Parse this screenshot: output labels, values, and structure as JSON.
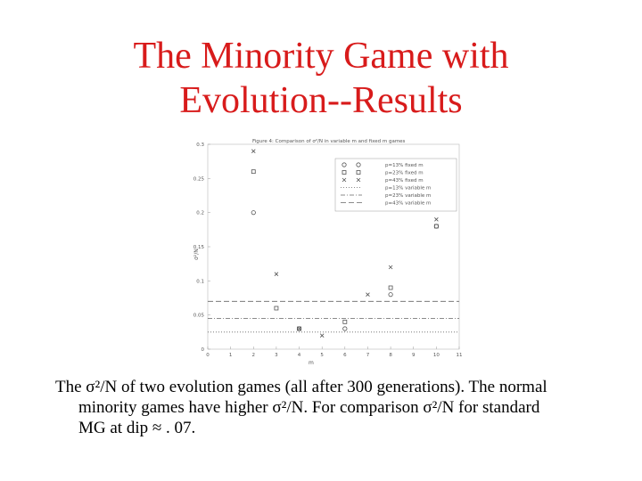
{
  "slide": {
    "title_line1": "The Minority Game with",
    "title_line2": "Evolution--Results",
    "caption_line1": "The σ²/N of two evolution games (all after 300 generations). The normal",
    "caption_line2": "minority games have higher σ²/N.  For comparison σ²/N for standard",
    "caption_line3": "MG at dip ≈ . 07."
  },
  "colors": {
    "title": "#d81b1b",
    "text": "#000000",
    "markers": "#555555"
  },
  "chart_data": {
    "type": "scatter",
    "title": "Figure 4: Comparison of σ²/N in variable m and fixed m games",
    "xlabel": "m",
    "ylabel": "σ²/N",
    "xlim": [
      0,
      11
    ],
    "ylim": [
      0,
      0.3
    ],
    "x_ticks": [
      "0",
      "1",
      "2",
      "3",
      "4",
      "5",
      "6",
      "7",
      "8",
      "9",
      "10",
      "11"
    ],
    "y_ticks": [
      "0",
      "0.05",
      "0.1",
      "0.15",
      "0.2",
      "0.25",
      "0.3"
    ],
    "legend_position": "top-right",
    "series": [
      {
        "name": "p=13% fixed m",
        "marker": "circle",
        "x": [
          2,
          4,
          6,
          8,
          10
        ],
        "y": [
          0.2,
          0.03,
          0.03,
          0.08,
          0.18
        ]
      },
      {
        "name": "p=23% fixed m",
        "marker": "square",
        "x": [
          2,
          3,
          4,
          6,
          8,
          10
        ],
        "y": [
          0.26,
          0.06,
          0.03,
          0.04,
          0.09,
          0.18
        ]
      },
      {
        "name": "p=43% fixed m",
        "marker": "x",
        "x": [
          2,
          3,
          4,
          5,
          7,
          8,
          10
        ],
        "y": [
          0.29,
          0.11,
          0.03,
          0.02,
          0.08,
          0.12,
          0.19
        ]
      },
      {
        "name": "p=13% variable m",
        "line": "dotted",
        "y": 0.025
      },
      {
        "name": "p=23% variable m",
        "line": "dashdot",
        "y": 0.045
      },
      {
        "name": "p=43% variable m",
        "line": "dashed",
        "y": 0.07
      }
    ]
  }
}
